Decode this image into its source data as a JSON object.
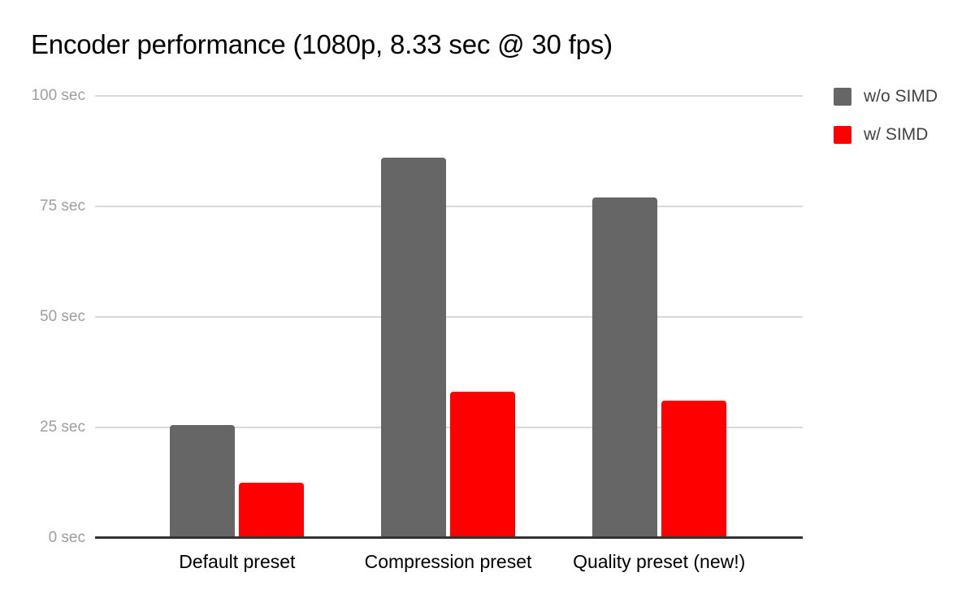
{
  "chart_data": {
    "type": "bar",
    "title": "Encoder performance (1080p, 8.33 sec @ 30 fps)",
    "categories": [
      "Default preset",
      "Compression preset",
      "Quality preset (new!)"
    ],
    "series": [
      {
        "name": "w/o SIMD",
        "color": "#666666",
        "values": [
          25.5,
          86,
          77
        ]
      },
      {
        "name": "w/ SIMD",
        "color": "#ff0000",
        "values": [
          12.5,
          33,
          31
        ]
      }
    ],
    "xlabel": "",
    "ylabel": "",
    "y_unit": "sec",
    "ylim": [
      0,
      100
    ],
    "y_ticks": [
      {
        "value": 0,
        "label": "0 sec"
      },
      {
        "value": 25,
        "label": "25 sec"
      },
      {
        "value": 50,
        "label": "50 sec"
      },
      {
        "value": 75,
        "label": "75 sec"
      },
      {
        "value": 100,
        "label": "100 sec"
      }
    ],
    "grid": true,
    "legend_position": "right",
    "colors": {
      "background": "#ffffff",
      "title_text": "#000000",
      "axis_tick_text": "#9e9e9e",
      "category_text": "#000000",
      "legend_text": "#424242",
      "gridline": "#d9d9d9",
      "baseline": "#333333"
    }
  }
}
